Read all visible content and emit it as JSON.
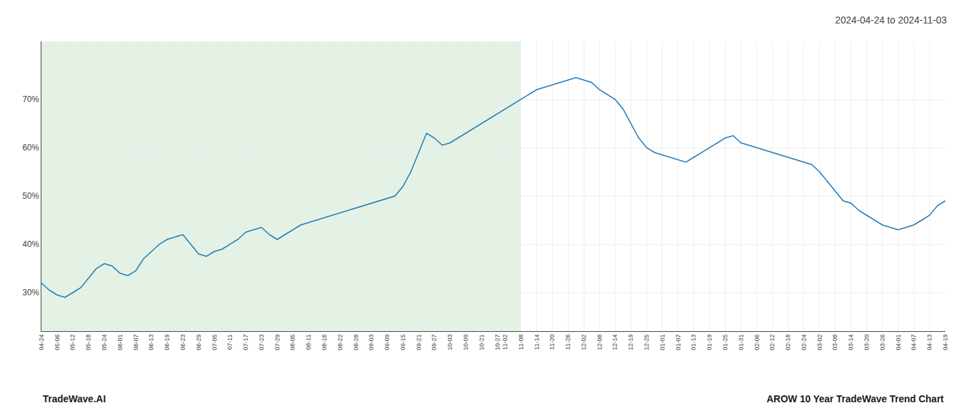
{
  "chart_data": {
    "type": "line",
    "title": "2024-04-24 to 2024-11-03",
    "annotations": [
      {
        "text": "TradeWave.AI"
      },
      {
        "text": "AROW 10 Year TradeWave Trend Chart"
      }
    ],
    "categories": [
      "04-24",
      null,
      "05-06",
      null,
      "05-12",
      null,
      "05-18",
      null,
      "05-24",
      null,
      "06-01",
      null,
      "06-07",
      null,
      "06-13",
      null,
      "06-19",
      null,
      "06-23",
      null,
      "06-29",
      null,
      "07-05",
      null,
      "07-11",
      null,
      "07-17",
      null,
      "07-23",
      null,
      "07-29",
      null,
      "08-05",
      null,
      "08-11",
      null,
      "08-16",
      null,
      "08-22",
      null,
      "08-28",
      null,
      "09-03",
      null,
      "09-09",
      null,
      "09-15",
      null,
      "09-21",
      null,
      "09-27",
      null,
      "10-03",
      null,
      "10-09",
      null,
      "10-21",
      null,
      "10-27",
      "11-02",
      null,
      "11-08",
      null,
      "11-14",
      null,
      "11-20",
      null,
      "11-26",
      null,
      "12-02",
      null,
      "12-08",
      null,
      "12-14",
      null,
      "12-19",
      null,
      "12-25",
      null,
      "01-01",
      null,
      "01-07",
      null,
      "01-13",
      null,
      "01-19",
      null,
      "01-25",
      null,
      "01-31",
      null,
      "02-06",
      null,
      "02-12",
      null,
      "02-18",
      null,
      "02-24",
      null,
      "03-02",
      null,
      "03-08",
      null,
      "03-14",
      null,
      "03-20",
      null,
      "03-26",
      null,
      "04-01",
      null,
      "04-07",
      null,
      "04-13",
      null,
      "04-19"
    ],
    "values": [
      32.0,
      30.5,
      29.5,
      29.0,
      30.0,
      31.0,
      33.0,
      35.0,
      36.0,
      35.5,
      34.0,
      33.5,
      34.5,
      37.0,
      38.5,
      40.0,
      41.0,
      41.5,
      42.0,
      40.0,
      38.0,
      37.5,
      38.5,
      39.0,
      40.0,
      41.0,
      42.5,
      43.0,
      43.5,
      42.0,
      41.0,
      42.0,
      43.0,
      44.0,
      44.5,
      45.0,
      45.5,
      46.0,
      46.5,
      47.0,
      47.5,
      48.0,
      48.5,
      49.0,
      49.5,
      50.0,
      52.0,
      55.0,
      59.0,
      63.0,
      62.0,
      60.5,
      61.0,
      62.0,
      63.0,
      64.0,
      65.0,
      66.0,
      67.0,
      68.0,
      69.0,
      70.0,
      71.0,
      72.0,
      72.5,
      73.0,
      73.5,
      74.0,
      74.5,
      74.0,
      73.5,
      72.0,
      71.0,
      70.0,
      68.0,
      65.0,
      62.0,
      60.0,
      59.0,
      58.5,
      58.0,
      57.5,
      57.0,
      58.0,
      59.0,
      60.0,
      61.0,
      62.0,
      62.5,
      61.0,
      60.5,
      60.0,
      59.5,
      59.0,
      58.5,
      58.0,
      57.5,
      57.0,
      56.5,
      55.0,
      53.0,
      51.0,
      49.0,
      48.5,
      47.0,
      46.0,
      45.0,
      44.0,
      43.5,
      43.0,
      43.5,
      44.0,
      45.0,
      46.0,
      48.0,
      49.0
    ],
    "color": "#1f77b4",
    "ylim": [
      22,
      82
    ],
    "yticks": [
      {
        "value": 30,
        "label": "30%"
      },
      {
        "value": 40,
        "label": "40%"
      },
      {
        "value": 50,
        "label": "50%"
      },
      {
        "value": 60,
        "label": "60%"
      },
      {
        "value": 70,
        "label": "70%"
      }
    ],
    "grid": true,
    "shade": {
      "from": "04-24",
      "to": "11-08",
      "color": "#c8e6c9"
    }
  }
}
